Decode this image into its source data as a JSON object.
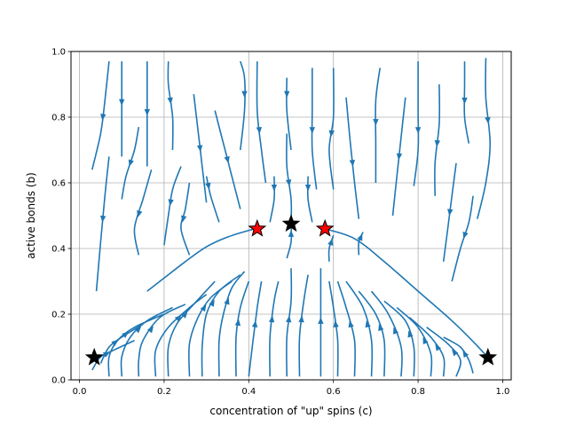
{
  "chart_data": {
    "type": "streamplot",
    "xlabel": "concentration of \"up\" spins (c)",
    "ylabel": "active bonds (b)",
    "xlim": [
      -0.02,
      1.02
    ],
    "ylim": [
      0.0,
      1.0
    ],
    "xticks": [
      "0.0",
      "0.2",
      "0.4",
      "0.6",
      "0.8",
      "1.0"
    ],
    "yticks": [
      "0.0",
      "0.2",
      "0.4",
      "0.6",
      "0.8",
      "1.0"
    ],
    "grid": true,
    "stream_color": "#1f77b4",
    "fixed_points": [
      {
        "kind": "stable",
        "color": "#000000",
        "c": 0.035,
        "b": 0.068
      },
      {
        "kind": "stable",
        "color": "#000000",
        "c": 0.965,
        "b": 0.068
      },
      {
        "kind": "stable",
        "color": "#000000",
        "c": 0.5,
        "b": 0.475
      },
      {
        "kind": "saddle",
        "color": "#ff0000",
        "c": 0.42,
        "b": 0.46
      },
      {
        "kind": "saddle",
        "color": "#ff0000",
        "c": 0.58,
        "b": 0.46
      }
    ],
    "separatrix": {
      "left": [
        [
          0.16,
          0.27
        ],
        [
          0.2,
          0.31
        ],
        [
          0.25,
          0.36
        ],
        [
          0.3,
          0.405
        ],
        [
          0.35,
          0.435
        ],
        [
          0.4,
          0.455
        ],
        [
          0.42,
          0.46
        ]
      ],
      "right": [
        [
          0.58,
          0.46
        ],
        [
          0.65,
          0.43
        ],
        [
          0.72,
          0.36
        ],
        [
          0.8,
          0.27
        ],
        [
          0.88,
          0.18
        ],
        [
          0.935,
          0.11
        ],
        [
          0.965,
          0.068
        ]
      ]
    },
    "down_streams": [
      [
        [
          0.03,
          0.64
        ],
        [
          0.05,
          0.75
        ],
        [
          0.06,
          0.85
        ],
        [
          0.07,
          0.97
        ]
      ],
      [
        [
          0.04,
          0.27
        ],
        [
          0.05,
          0.42
        ],
        [
          0.06,
          0.56
        ],
        [
          0.07,
          0.68
        ]
      ],
      [
        [
          0.1,
          0.68
        ],
        [
          0.1,
          0.79
        ],
        [
          0.1,
          0.9
        ],
        [
          0.1,
          0.97
        ]
      ],
      [
        [
          0.1,
          0.55
        ],
        [
          0.11,
          0.62
        ],
        [
          0.13,
          0.7
        ],
        [
          0.14,
          0.77
        ]
      ],
      [
        [
          0.16,
          0.65
        ],
        [
          0.16,
          0.76
        ],
        [
          0.16,
          0.87
        ],
        [
          0.16,
          0.97
        ]
      ],
      [
        [
          0.14,
          0.38
        ],
        [
          0.13,
          0.46
        ],
        [
          0.15,
          0.55
        ],
        [
          0.17,
          0.64
        ]
      ],
      [
        [
          0.22,
          0.7
        ],
        [
          0.22,
          0.8
        ],
        [
          0.21,
          0.9
        ],
        [
          0.21,
          0.97
        ]
      ],
      [
        [
          0.2,
          0.41
        ],
        [
          0.21,
          0.5
        ],
        [
          0.22,
          0.58
        ],
        [
          0.24,
          0.65
        ]
      ],
      [
        [
          0.26,
          0.38
        ],
        [
          0.24,
          0.46
        ],
        [
          0.25,
          0.52
        ],
        [
          0.26,
          0.6
        ]
      ],
      [
        [
          0.3,
          0.54
        ],
        [
          0.29,
          0.65
        ],
        [
          0.28,
          0.76
        ],
        [
          0.27,
          0.87
        ]
      ],
      [
        [
          0.33,
          0.48
        ],
        [
          0.31,
          0.56
        ],
        [
          0.3,
          0.62
        ]
      ],
      [
        [
          0.38,
          0.52
        ],
        [
          0.36,
          0.62
        ],
        [
          0.34,
          0.72
        ],
        [
          0.32,
          0.82
        ]
      ],
      [
        [
          0.38,
          0.7
        ],
        [
          0.39,
          0.82
        ],
        [
          0.39,
          0.92
        ],
        [
          0.38,
          0.97
        ]
      ],
      [
        [
          0.44,
          0.6
        ],
        [
          0.43,
          0.7
        ],
        [
          0.42,
          0.82
        ],
        [
          0.42,
          0.97
        ]
      ],
      [
        [
          0.5,
          0.7
        ],
        [
          0.49,
          0.82
        ],
        [
          0.49,
          0.92
        ]
      ],
      [
        [
          0.56,
          0.58
        ],
        [
          0.55,
          0.7
        ],
        [
          0.55,
          0.82
        ],
        [
          0.55,
          0.95
        ]
      ],
      [
        [
          0.6,
          0.58
        ],
        [
          0.59,
          0.7
        ],
        [
          0.6,
          0.8
        ],
        [
          0.6,
          0.95
        ]
      ],
      [
        [
          0.66,
          0.49
        ],
        [
          0.65,
          0.6
        ],
        [
          0.64,
          0.72
        ],
        [
          0.63,
          0.86
        ]
      ],
      [
        [
          0.7,
          0.6
        ],
        [
          0.7,
          0.72
        ],
        [
          0.7,
          0.85
        ],
        [
          0.71,
          0.95
        ]
      ],
      [
        [
          0.74,
          0.5
        ],
        [
          0.75,
          0.62
        ],
        [
          0.76,
          0.74
        ],
        [
          0.77,
          0.86
        ]
      ],
      [
        [
          0.79,
          0.59
        ],
        [
          0.8,
          0.7
        ],
        [
          0.8,
          0.82
        ],
        [
          0.8,
          0.97
        ]
      ],
      [
        [
          0.84,
          0.56
        ],
        [
          0.84,
          0.66
        ],
        [
          0.85,
          0.78
        ],
        [
          0.85,
          0.9
        ]
      ],
      [
        [
          0.86,
          0.36
        ],
        [
          0.87,
          0.46
        ],
        [
          0.88,
          0.56
        ],
        [
          0.89,
          0.66
        ]
      ],
      [
        [
          0.88,
          0.3
        ],
        [
          0.9,
          0.4
        ],
        [
          0.92,
          0.48
        ],
        [
          0.93,
          0.56
        ]
      ],
      [
        [
          0.92,
          0.72
        ],
        [
          0.91,
          0.8
        ],
        [
          0.91,
          0.9
        ],
        [
          0.91,
          0.97
        ]
      ],
      [
        [
          0.94,
          0.49
        ],
        [
          0.96,
          0.6
        ],
        [
          0.97,
          0.72
        ],
        [
          0.96,
          0.86
        ],
        [
          0.96,
          0.98
        ]
      ]
    ],
    "up_streams": [
      [
        [
          0.03,
          0.03
        ],
        [
          0.05,
          0.07
        ],
        [
          0.08,
          0.09
        ],
        [
          0.13,
          0.12
        ]
      ],
      [
        [
          0.05,
          0.05
        ],
        [
          0.07,
          0.1
        ],
        [
          0.1,
          0.13
        ],
        [
          0.15,
          0.17
        ]
      ],
      [
        [
          0.07,
          0.01
        ],
        [
          0.07,
          0.07
        ],
        [
          0.09,
          0.12
        ],
        [
          0.13,
          0.16
        ],
        [
          0.2,
          0.2
        ]
      ],
      [
        [
          0.1,
          0.01
        ],
        [
          0.1,
          0.07
        ],
        [
          0.12,
          0.13
        ],
        [
          0.16,
          0.18
        ],
        [
          0.22,
          0.22
        ]
      ],
      [
        [
          0.14,
          0.01
        ],
        [
          0.14,
          0.06
        ],
        [
          0.15,
          0.12
        ],
        [
          0.19,
          0.19
        ],
        [
          0.25,
          0.23
        ]
      ],
      [
        [
          0.18,
          0.01
        ],
        [
          0.18,
          0.09
        ],
        [
          0.21,
          0.16
        ],
        [
          0.26,
          0.22
        ],
        [
          0.3,
          0.26
        ]
      ],
      [
        [
          0.21,
          0.01
        ],
        [
          0.21,
          0.1
        ],
        [
          0.23,
          0.17
        ],
        [
          0.27,
          0.23
        ],
        [
          0.32,
          0.3
        ]
      ],
      [
        [
          0.26,
          0.01
        ],
        [
          0.26,
          0.11
        ],
        [
          0.28,
          0.19
        ],
        [
          0.31,
          0.25
        ],
        [
          0.36,
          0.3
        ]
      ],
      [
        [
          0.29,
          0.01
        ],
        [
          0.29,
          0.1
        ],
        [
          0.3,
          0.2
        ],
        [
          0.33,
          0.27
        ],
        [
          0.38,
          0.32
        ]
      ],
      [
        [
          0.33,
          0.01
        ],
        [
          0.33,
          0.12
        ],
        [
          0.34,
          0.2
        ],
        [
          0.36,
          0.28
        ],
        [
          0.39,
          0.33
        ]
      ],
      [
        [
          0.37,
          0.01
        ],
        [
          0.37,
          0.13
        ],
        [
          0.38,
          0.22
        ],
        [
          0.4,
          0.3
        ]
      ],
      [
        [
          0.4,
          0.01
        ],
        [
          0.41,
          0.12
        ],
        [
          0.42,
          0.22
        ],
        [
          0.43,
          0.3
        ]
      ],
      [
        [
          0.45,
          0.01
        ],
        [
          0.45,
          0.13
        ],
        [
          0.46,
          0.24
        ],
        [
          0.47,
          0.3
        ]
      ],
      [
        [
          0.49,
          0.01
        ],
        [
          0.49,
          0.13
        ],
        [
          0.5,
          0.24
        ],
        [
          0.5,
          0.34
        ]
      ],
      [
        [
          0.52,
          0.01
        ],
        [
          0.52,
          0.13
        ],
        [
          0.53,
          0.24
        ],
        [
          0.54,
          0.32
        ]
      ],
      [
        [
          0.57,
          0.01
        ],
        [
          0.57,
          0.12
        ],
        [
          0.57,
          0.24
        ],
        [
          0.57,
          0.34
        ]
      ],
      [
        [
          0.61,
          0.01
        ],
        [
          0.61,
          0.12
        ],
        [
          0.6,
          0.22
        ],
        [
          0.59,
          0.3
        ]
      ],
      [
        [
          0.65,
          0.01
        ],
        [
          0.65,
          0.12
        ],
        [
          0.63,
          0.22
        ],
        [
          0.61,
          0.3
        ]
      ],
      [
        [
          0.69,
          0.01
        ],
        [
          0.69,
          0.12
        ],
        [
          0.67,
          0.22
        ],
        [
          0.63,
          0.3
        ]
      ],
      [
        [
          0.72,
          0.01
        ],
        [
          0.72,
          0.12
        ],
        [
          0.7,
          0.2
        ],
        [
          0.66,
          0.27
        ]
      ],
      [
        [
          0.76,
          0.01
        ],
        [
          0.76,
          0.1
        ],
        [
          0.73,
          0.2
        ],
        [
          0.69,
          0.27
        ]
      ],
      [
        [
          0.79,
          0.01
        ],
        [
          0.79,
          0.1
        ],
        [
          0.77,
          0.18
        ],
        [
          0.72,
          0.24
        ]
      ],
      [
        [
          0.83,
          0.01
        ],
        [
          0.83,
          0.08
        ],
        [
          0.8,
          0.16
        ],
        [
          0.75,
          0.22
        ]
      ],
      [
        [
          0.86,
          0.01
        ],
        [
          0.86,
          0.07
        ],
        [
          0.83,
          0.13
        ],
        [
          0.78,
          0.19
        ]
      ],
      [
        [
          0.89,
          0.01
        ],
        [
          0.9,
          0.06
        ],
        [
          0.87,
          0.11
        ],
        [
          0.82,
          0.16
        ]
      ],
      [
        [
          0.93,
          0.02
        ],
        [
          0.92,
          0.06
        ],
        [
          0.9,
          0.1
        ],
        [
          0.86,
          0.13
        ]
      ]
    ],
    "center_streams": [
      [
        [
          0.5,
          0.48
        ],
        [
          0.5,
          0.55
        ],
        [
          0.49,
          0.65
        ],
        [
          0.49,
          0.75
        ]
      ],
      [
        [
          0.45,
          0.48
        ],
        [
          0.46,
          0.55
        ],
        [
          0.46,
          0.62
        ]
      ],
      [
        [
          0.55,
          0.48
        ],
        [
          0.54,
          0.55
        ],
        [
          0.54,
          0.62
        ]
      ],
      [
        [
          0.49,
          0.37
        ],
        [
          0.5,
          0.42
        ],
        [
          0.5,
          0.47
        ]
      ],
      [
        [
          0.59,
          0.36
        ],
        [
          0.59,
          0.4
        ],
        [
          0.6,
          0.44
        ]
      ],
      [
        [
          0.66,
          0.38
        ],
        [
          0.66,
          0.42
        ],
        [
          0.67,
          0.45
        ]
      ]
    ]
  }
}
